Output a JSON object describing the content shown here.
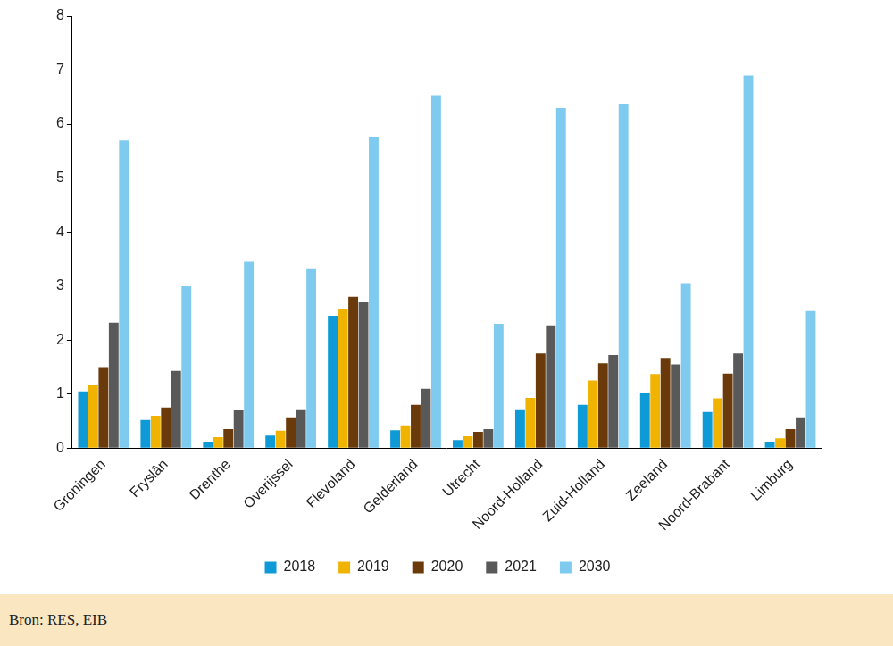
{
  "chart_data": {
    "type": "bar",
    "source": "Bron: RES, EIB",
    "categories": [
      "Groningen",
      "Fryslân",
      "Drenthe",
      "Overijssel",
      "Flevoland",
      "Gelderland",
      "Utrecht",
      "Noord-Holland",
      "Zuid-Holland",
      "Zeeland",
      "Noord-Brabant",
      "Limburg"
    ],
    "series": [
      {
        "name": "2018",
        "color": "#0e9ad7",
        "values": [
          1.05,
          0.52,
          0.12,
          0.23,
          2.45,
          0.33,
          0.15,
          0.72,
          0.8,
          1.02,
          0.67,
          0.12
        ]
      },
      {
        "name": "2019",
        "color": "#f0b400",
        "values": [
          1.17,
          0.6,
          0.2,
          0.32,
          2.58,
          0.42,
          0.22,
          0.93,
          1.25,
          1.37,
          0.92,
          0.18
        ]
      },
      {
        "name": "2020",
        "color": "#6b3a0a",
        "values": [
          1.5,
          0.75,
          0.35,
          0.57,
          2.8,
          0.8,
          0.3,
          1.75,
          1.57,
          1.67,
          1.38,
          0.35
        ]
      },
      {
        "name": "2021",
        "color": "#595959",
        "values": [
          2.32,
          1.43,
          0.7,
          0.72,
          2.7,
          1.1,
          0.35,
          2.27,
          1.72,
          1.55,
          1.75,
          0.57
        ]
      },
      {
        "name": "2030",
        "color": "#7fcbef",
        "values": [
          5.7,
          3.0,
          3.45,
          3.33,
          5.77,
          6.52,
          2.3,
          6.3,
          6.37,
          3.05,
          6.9,
          2.55
        ]
      }
    ],
    "ylim": [
      0,
      8
    ],
    "yticks": [
      0,
      1,
      2,
      3,
      4,
      5,
      6,
      7,
      8
    ],
    "grid": false,
    "legend": "bottom"
  }
}
